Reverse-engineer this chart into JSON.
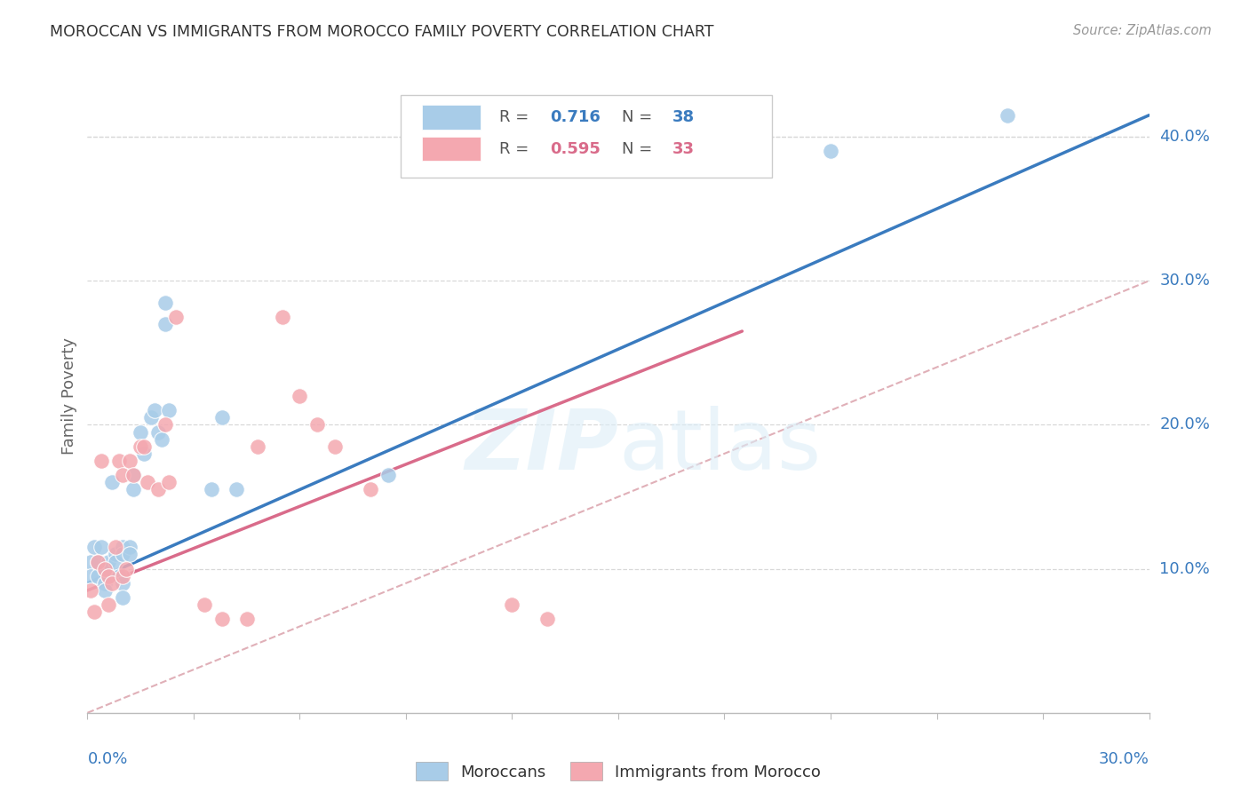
{
  "title": "MOROCCAN VS IMMIGRANTS FROM MOROCCO FAMILY POVERTY CORRELATION CHART",
  "source": "Source: ZipAtlas.com",
  "ylabel": "Family Poverty",
  "right_yticks": [
    "10.0%",
    "20.0%",
    "30.0%",
    "40.0%"
  ],
  "right_ytick_vals": [
    0.1,
    0.2,
    0.3,
    0.4
  ],
  "watermark_zip": "ZIP",
  "watermark_atlas": "atlas",
  "legend_blue_r": "0.716",
  "legend_blue_n": "38",
  "legend_pink_r": "0.595",
  "legend_pink_n": "33",
  "blue_scatter_color": "#a8cce8",
  "pink_scatter_color": "#f4a8b0",
  "line_blue_color": "#3a7bbf",
  "line_pink_color": "#d96b8a",
  "diag_color": "#cccccc",
  "xlim": [
    0.0,
    0.3
  ],
  "ylim": [
    0.0,
    0.44
  ],
  "blue_scatter_x": [
    0.001,
    0.001,
    0.002,
    0.003,
    0.003,
    0.004,
    0.005,
    0.005,
    0.005,
    0.006,
    0.006,
    0.007,
    0.008,
    0.008,
    0.009,
    0.01,
    0.01,
    0.01,
    0.01,
    0.012,
    0.012,
    0.013,
    0.013,
    0.015,
    0.016,
    0.018,
    0.019,
    0.02,
    0.021,
    0.022,
    0.022,
    0.023,
    0.035,
    0.038,
    0.042,
    0.085,
    0.21,
    0.26
  ],
  "blue_scatter_y": [
    0.105,
    0.095,
    0.115,
    0.105,
    0.095,
    0.115,
    0.1,
    0.09,
    0.085,
    0.105,
    0.095,
    0.16,
    0.11,
    0.105,
    0.095,
    0.115,
    0.11,
    0.09,
    0.08,
    0.115,
    0.11,
    0.165,
    0.155,
    0.195,
    0.18,
    0.205,
    0.21,
    0.195,
    0.19,
    0.285,
    0.27,
    0.21,
    0.155,
    0.205,
    0.155,
    0.165,
    0.39,
    0.415
  ],
  "pink_scatter_x": [
    0.001,
    0.002,
    0.003,
    0.004,
    0.005,
    0.006,
    0.006,
    0.007,
    0.008,
    0.009,
    0.01,
    0.01,
    0.011,
    0.012,
    0.013,
    0.015,
    0.016,
    0.017,
    0.02,
    0.022,
    0.023,
    0.025,
    0.033,
    0.038,
    0.045,
    0.048,
    0.055,
    0.06,
    0.065,
    0.07,
    0.08,
    0.12,
    0.13
  ],
  "pink_scatter_y": [
    0.085,
    0.07,
    0.105,
    0.175,
    0.1,
    0.075,
    0.095,
    0.09,
    0.115,
    0.175,
    0.165,
    0.095,
    0.1,
    0.175,
    0.165,
    0.185,
    0.185,
    0.16,
    0.155,
    0.2,
    0.16,
    0.275,
    0.075,
    0.065,
    0.065,
    0.185,
    0.275,
    0.22,
    0.2,
    0.185,
    0.155,
    0.075,
    0.065
  ],
  "blue_line_x": [
    0.0,
    0.3
  ],
  "blue_line_y": [
    0.09,
    0.415
  ],
  "pink_line_x": [
    0.0,
    0.185
  ],
  "pink_line_y": [
    0.085,
    0.265
  ],
  "diag_line_x": [
    0.0,
    0.3
  ],
  "diag_line_y": [
    0.0,
    0.3
  ],
  "background_color": "#ffffff",
  "grid_color": "#d8d8d8",
  "text_dark": "#333333",
  "text_gray": "#999999",
  "legend_text_gray": "#555555",
  "legend_box_color": "#eeeeee",
  "legend_box_edge": "#cccccc"
}
